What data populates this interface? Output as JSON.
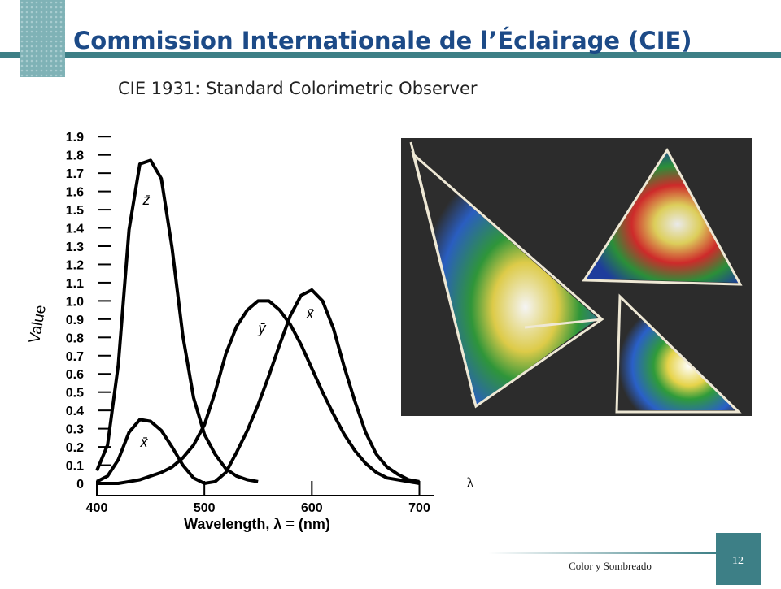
{
  "slide": {
    "title": "Commission Internationale de l’Éclairage (CIE)",
    "subtitle": "CIE 1931: Standard Colorimetric Observer",
    "footer": "Color y Sombreado",
    "page_number": "12"
  },
  "chart_data": {
    "type": "line",
    "x": [
      400,
      410,
      420,
      430,
      440,
      450,
      460,
      470,
      480,
      490,
      500,
      510,
      520,
      530,
      540,
      550,
      560,
      570,
      580,
      590,
      600,
      610,
      620,
      630,
      640,
      650,
      660,
      670,
      680,
      690,
      700
    ],
    "series": [
      {
        "name": "z̄",
        "color": "#000000",
        "values": [
          0.07,
          0.21,
          0.65,
          1.39,
          1.75,
          1.77,
          1.67,
          1.29,
          0.81,
          0.47,
          0.27,
          0.16,
          0.08,
          0.04,
          0.02,
          0.01,
          null,
          null,
          null,
          null,
          null,
          null,
          null,
          null,
          null,
          null,
          null,
          null,
          null,
          null,
          null
        ]
      },
      {
        "name": "ȳ",
        "color": "#000000",
        "values": [
          0,
          0,
          0,
          0.01,
          0.02,
          0.04,
          0.06,
          0.09,
          0.14,
          0.21,
          0.32,
          0.5,
          0.71,
          0.86,
          0.95,
          1,
          1,
          0.95,
          0.87,
          0.76,
          0.63,
          0.5,
          0.38,
          0.27,
          0.18,
          0.11,
          0.06,
          0.03,
          0.02,
          0.01,
          0
        ]
      },
      {
        "name": "x̄",
        "color": "#000000",
        "values": [
          0.01,
          0.04,
          0.13,
          0.28,
          0.35,
          0.34,
          0.29,
          0.2,
          0.1,
          0.03,
          0,
          0.01,
          0.06,
          0.17,
          0.29,
          0.43,
          0.59,
          0.76,
          0.92,
          1.03,
          1.06,
          1,
          0.85,
          0.64,
          0.45,
          0.28,
          0.16,
          0.09,
          0.05,
          0.02,
          0.01
        ]
      }
    ],
    "xlim": [
      400,
      714
    ],
    "ylim": [
      0,
      1.95
    ],
    "xticks": [
      400,
      500,
      600,
      700
    ],
    "yticks": [
      0,
      0.1,
      0.2,
      0.3,
      0.4,
      0.5,
      0.6,
      0.7,
      0.8,
      0.9,
      {
        "value": 1,
        "label": "1.0"
      },
      1.1,
      1.2,
      1.3,
      1.4,
      1.5,
      1.6,
      1.7,
      1.8,
      1.9
    ],
    "xlabel": "Wavelength, λ = (nm)",
    "ylabel": "Value",
    "x_end_label": "λ"
  }
}
